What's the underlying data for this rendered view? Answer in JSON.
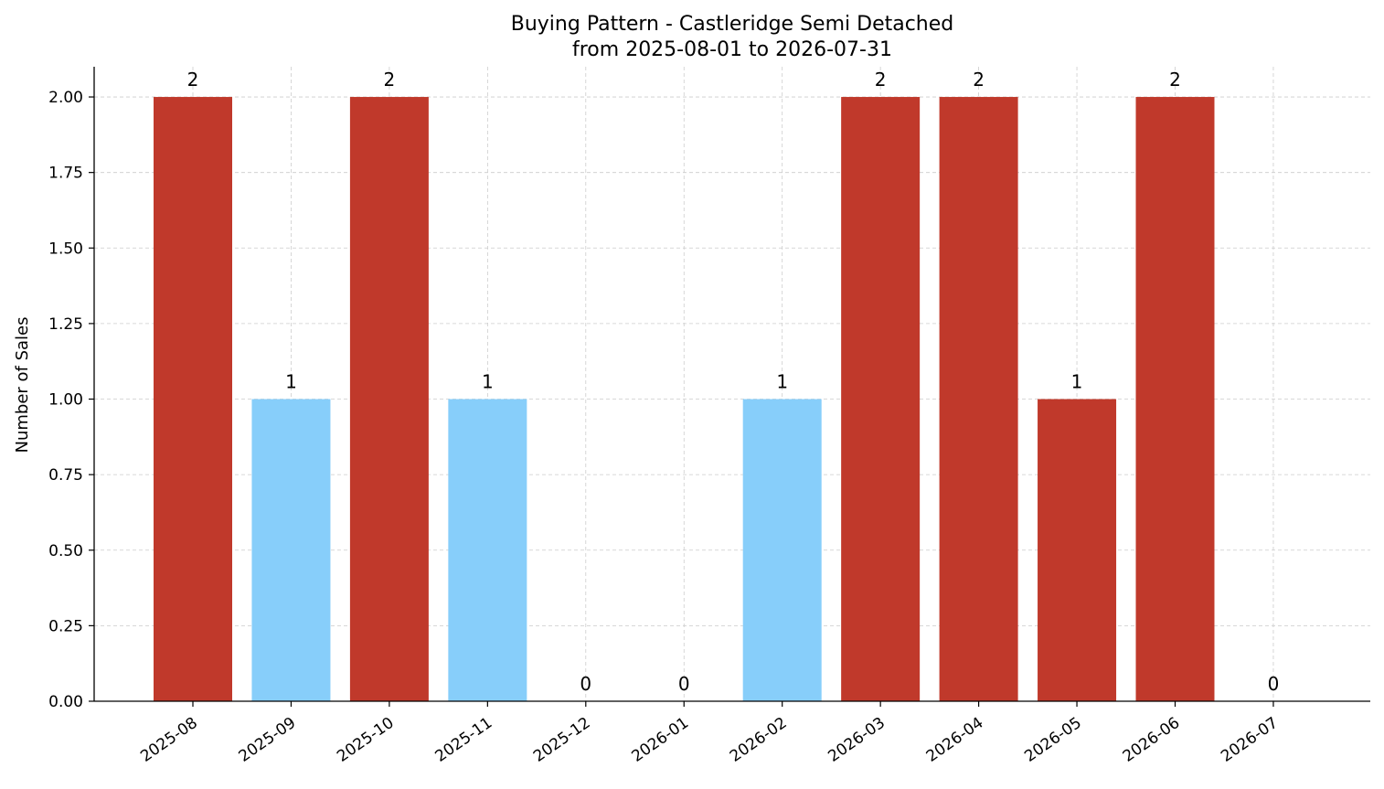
{
  "chart_data": {
    "type": "bar",
    "title_line1": "Buying Pattern - Castleridge Semi Detached",
    "title_line2": "from 2025-08-01 to 2026-07-31",
    "xlabel": "",
    "ylabel": "Number of Sales",
    "categories": [
      "2025-08",
      "2025-09",
      "2025-10",
      "2025-11",
      "2025-12",
      "2026-01",
      "2026-02",
      "2026-03",
      "2026-04",
      "2026-05",
      "2026-06",
      "2026-07"
    ],
    "values": [
      2,
      1,
      2,
      1,
      0,
      0,
      1,
      2,
      2,
      1,
      2,
      0
    ],
    "data_labels": [
      "2",
      "1",
      "2",
      "1",
      "0",
      "0",
      "1",
      "2",
      "2",
      "1",
      "2",
      "0"
    ],
    "bar_colors": [
      "#c0392b",
      "#87cefa",
      "#c0392b",
      "#87cefa",
      "#c0392b",
      "#c0392b",
      "#87cefa",
      "#c0392b",
      "#c0392b",
      "#c0392b",
      "#c0392b",
      "#c0392b"
    ],
    "ylim": [
      0,
      2.1
    ],
    "yticks": [
      "0.00",
      "0.25",
      "0.50",
      "0.75",
      "1.00",
      "1.25",
      "1.50",
      "1.75",
      "2.00"
    ],
    "ytick_values": [
      0,
      0.25,
      0.5,
      0.75,
      1.0,
      1.25,
      1.5,
      1.75,
      2.0
    ],
    "grid": true
  }
}
